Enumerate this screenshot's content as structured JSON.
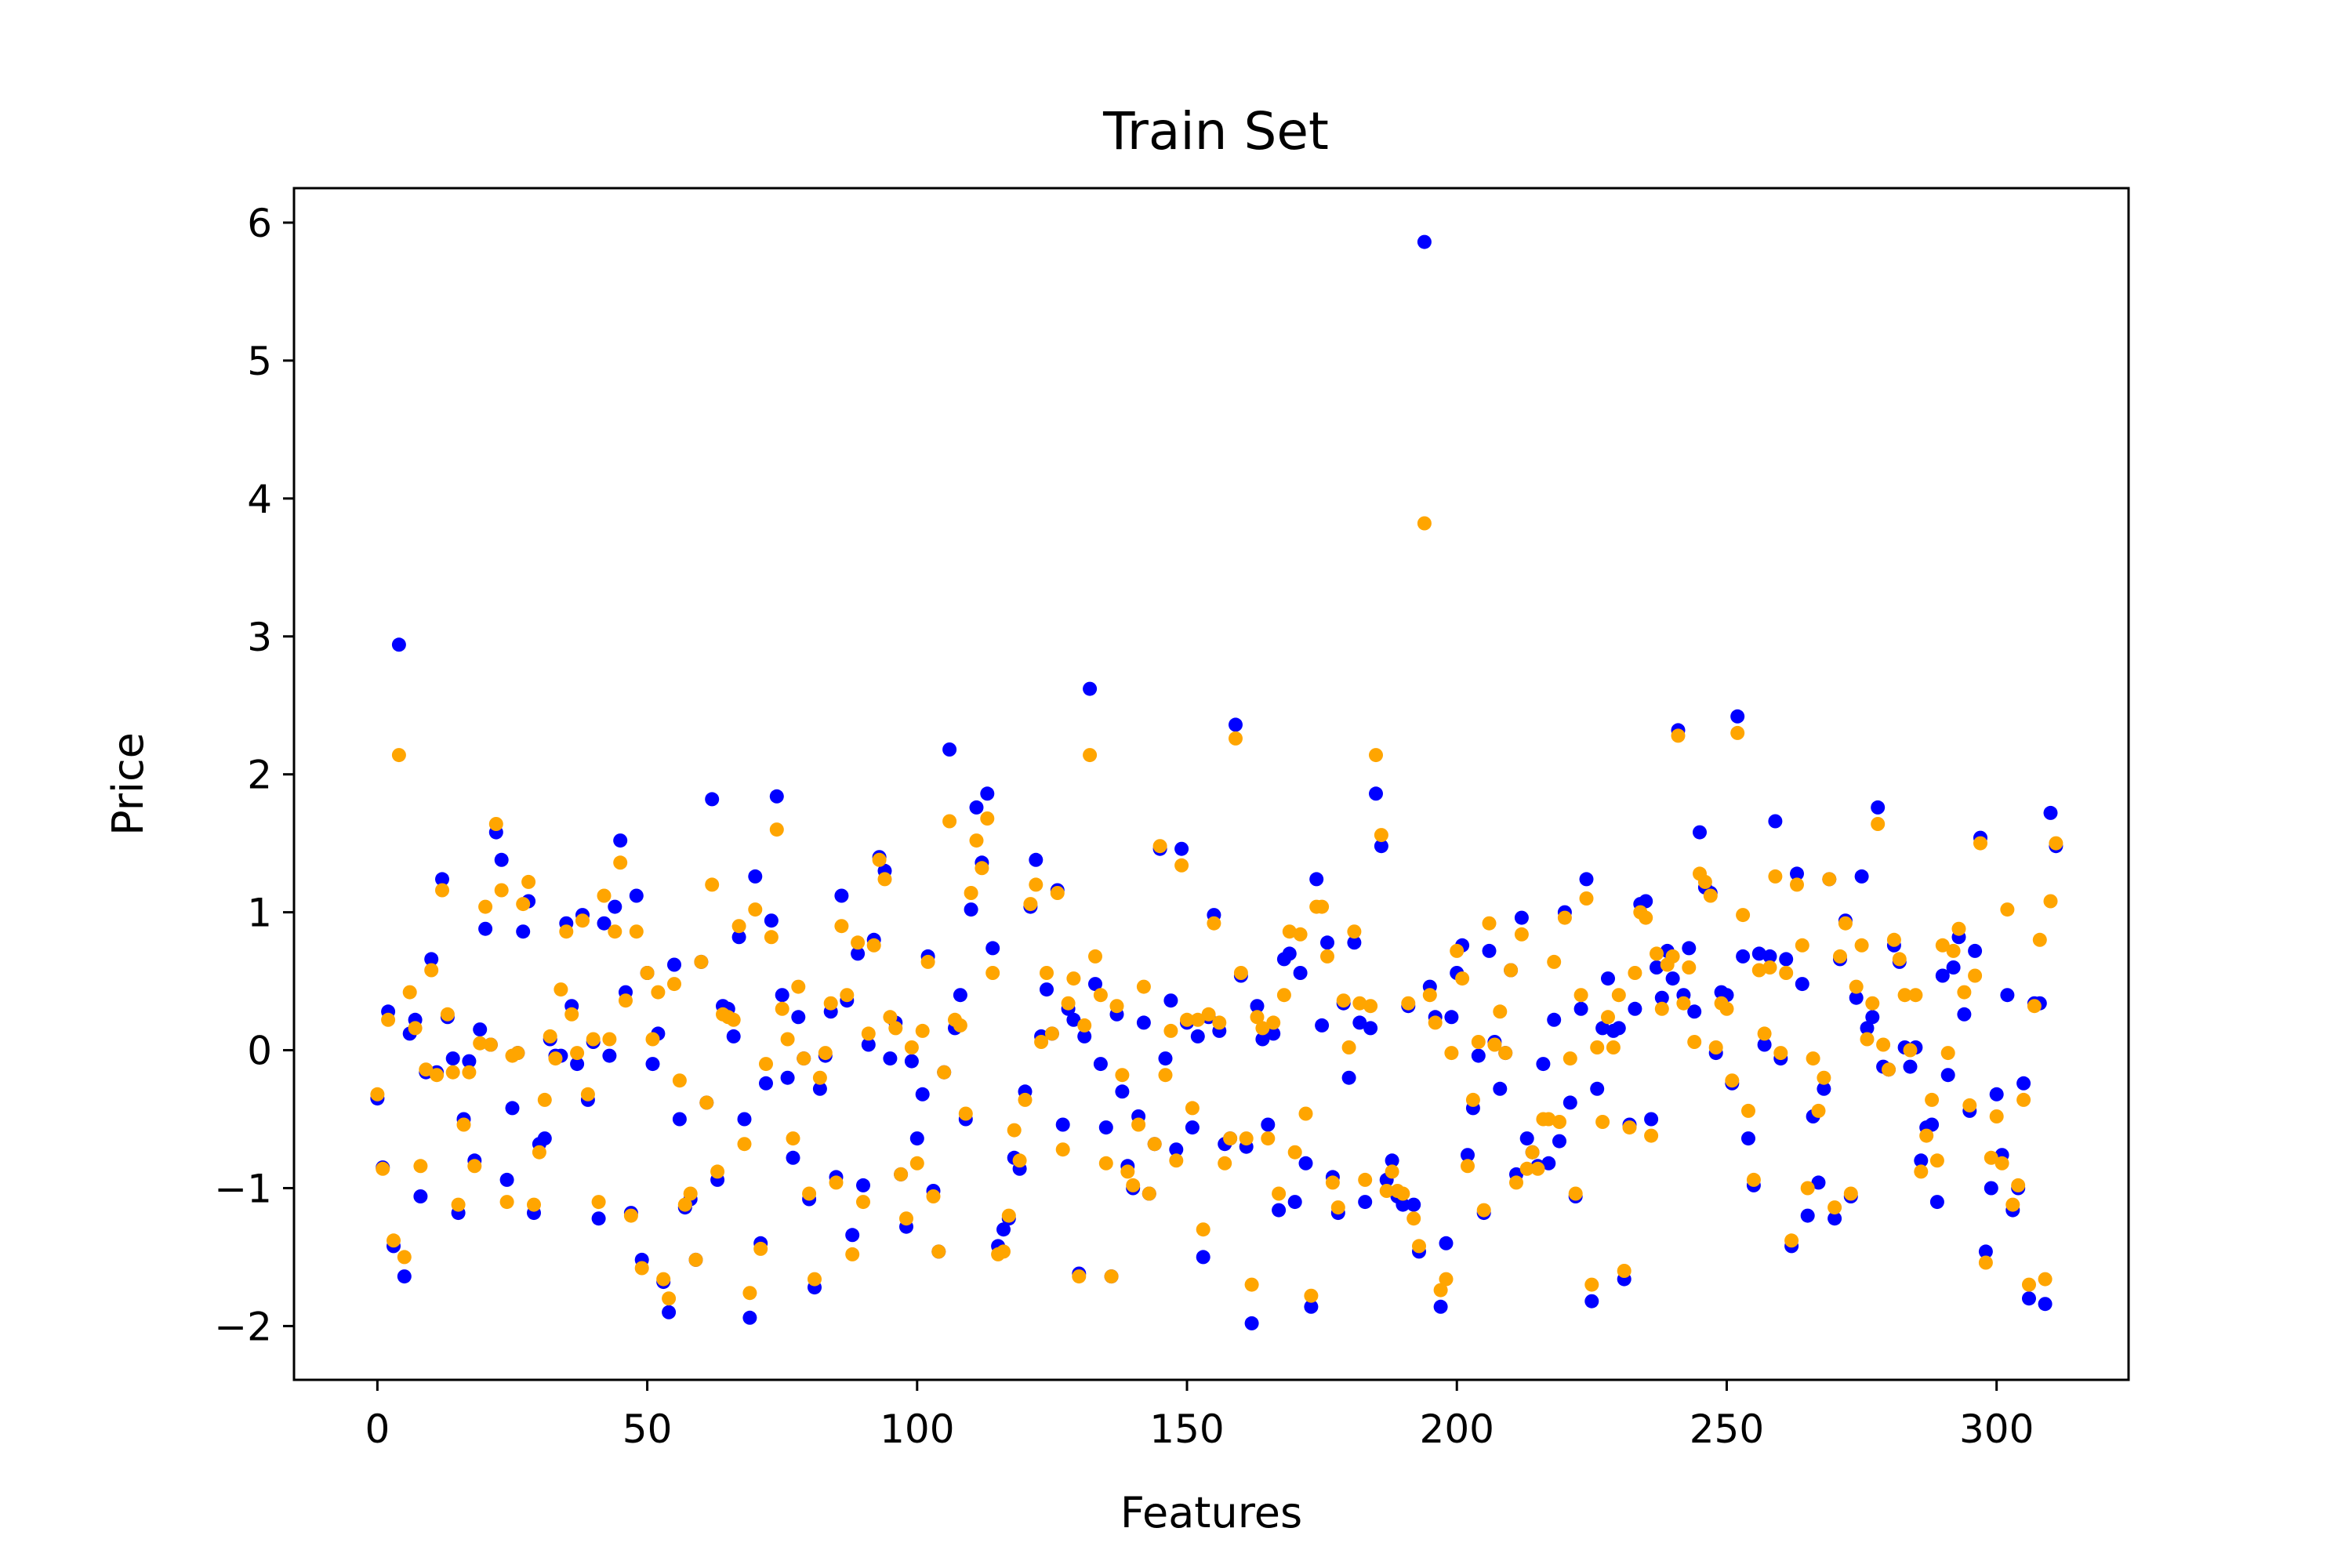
{
  "chart_data": {
    "type": "scatter",
    "title": "Train Set",
    "xlabel": "Features",
    "ylabel": "Price",
    "xlim": [
      -15.45,
      324.45
    ],
    "ylim": [
      -2.39,
      6.25
    ],
    "xticks": [
      0,
      50,
      100,
      150,
      200,
      250,
      300
    ],
    "yticks": [
      -2,
      -1,
      0,
      1,
      2,
      3,
      4,
      5,
      6
    ],
    "xtick_labels": [
      "0",
      "50",
      "100",
      "150",
      "200",
      "250",
      "300"
    ],
    "ytick_labels": [
      "−2",
      "−1",
      "0",
      "1",
      "2",
      "3",
      "4",
      "5",
      "6"
    ],
    "grid": false,
    "legend": false,
    "series": [
      {
        "color": "#0000ff",
        "values": [
          -0.35,
          -0.85,
          0.28,
          -1.42,
          2.94,
          -1.64,
          0.12,
          0.22,
          -1.06,
          -0.16,
          0.66,
          -0.16,
          1.24,
          0.24,
          -0.06,
          -1.18,
          -0.5,
          -0.08,
          -0.8,
          0.15,
          0.88,
          0.04,
          1.58,
          1.38,
          -0.94,
          -0.42,
          -0.02,
          0.86,
          1.08,
          -1.18,
          -0.68,
          -0.64,
          0.08,
          -0.04,
          -0.04,
          0.92,
          0.32,
          -0.1,
          0.98,
          -0.36,
          0.06,
          -1.22,
          0.92,
          -0.04,
          1.04,
          1.52,
          0.42,
          -1.18,
          1.12,
          -1.52,
          0.56,
          -0.1,
          0.12,
          -1.68,
          -1.9,
          0.62,
          -0.5,
          -1.14,
          -1.08,
          -1.52,
          0.64,
          -0.38,
          1.82,
          -0.94,
          0.32,
          0.3,
          0.1,
          0.82,
          -0.5,
          -1.94,
          1.26,
          -1.4,
          -0.24,
          0.94,
          1.84,
          0.4,
          -0.2,
          -0.78,
          0.24,
          -0.06,
          -1.08,
          -1.72,
          -0.28,
          -0.04,
          0.28,
          -0.92,
          1.12,
          0.36,
          -1.34,
          0.7,
          -0.98,
          0.04,
          0.8,
          1.4,
          1.3,
          -0.06,
          0.2,
          -0.9,
          -1.28,
          -0.08,
          -0.64,
          -0.32,
          0.68,
          -1.02,
          -1.46,
          -0.16,
          2.18,
          0.16,
          0.4,
          -0.5,
          1.02,
          1.76,
          1.36,
          1.86,
          0.74,
          -1.42,
          -1.3,
          -1.22,
          -0.78,
          -0.86,
          -0.3,
          1.04,
          1.38,
          0.1,
          0.44,
          0.12,
          1.16,
          -0.54,
          0.3,
          0.22,
          -1.62,
          0.1,
          2.62,
          0.48,
          -0.1,
          -0.56,
          -1.64,
          0.26,
          -0.3,
          -0.84,
          -1.0,
          -0.48,
          0.2,
          -1.04,
          -0.68,
          1.46,
          -0.06,
          0.36,
          -0.72,
          1.46,
          0.2,
          -0.56,
          0.1,
          -1.5,
          0.24,
          0.98,
          0.14,
          -0.68,
          -0.64,
          2.36,
          0.54,
          -0.7,
          -1.98,
          0.32,
          0.08,
          -0.54,
          0.12,
          -1.16,
          0.66,
          0.7,
          -1.1,
          0.56,
          -0.82,
          -1.86,
          1.24,
          0.18,
          0.78,
          -0.92,
          -1.18,
          0.34,
          -0.2,
          0.78,
          0.2,
          -1.1,
          0.16,
          1.86,
          1.48,
          -0.94,
          -0.8,
          -1.06,
          -1.12,
          0.32,
          -1.12,
          -1.46,
          5.86,
          0.46,
          0.24,
          -1.86,
          -1.4,
          0.24,
          0.56,
          0.76,
          -0.76,
          -0.42,
          -0.04,
          -1.18,
          0.72,
          0.06,
          -0.28,
          -0.02,
          0.58,
          -0.9,
          0.96,
          -0.64,
          -0.74,
          -0.84,
          -0.1,
          -0.82,
          0.22,
          -0.66,
          1.0,
          -0.38,
          -1.06,
          0.3,
          1.24,
          -1.82,
          -0.28,
          0.16,
          0.52,
          0.14,
          0.16,
          -1.66,
          -0.54,
          0.3,
          1.06,
          1.08,
          -0.5,
          0.6,
          0.38,
          0.72,
          0.52,
          2.32,
          0.4,
          0.74,
          0.28,
          1.58,
          1.18,
          1.14,
          -0.02,
          0.42,
          0.4,
          -0.24,
          2.42,
          0.68,
          -0.64,
          -0.98,
          0.7,
          0.04,
          0.68,
          1.66,
          -0.06,
          0.66,
          -1.42,
          1.28,
          0.48,
          -1.2,
          -0.48,
          -0.96,
          -0.28,
          1.24,
          -1.22,
          0.66,
          0.94,
          -1.06,
          0.38,
          1.26,
          0.16,
          0.24,
          1.76,
          -0.12,
          -0.14,
          0.76,
          0.64,
          0.02,
          -0.12,
          0.02,
          -0.8,
          -0.56,
          -0.54,
          -1.1,
          0.54,
          -0.18,
          0.6,
          0.82,
          0.26,
          -0.44,
          0.72,
          1.54,
          -1.46,
          -1.0,
          -0.32,
          -0.76,
          0.4,
          -1.16,
          -1.0,
          -0.24,
          -1.8,
          0.34,
          0.34,
          -1.84,
          1.72,
          1.48
        ]
      },
      {
        "color": "#ffa500",
        "values": [
          -0.32,
          -0.86,
          0.22,
          -1.38,
          2.14,
          -1.5,
          0.42,
          0.16,
          -0.84,
          -0.14,
          0.58,
          -0.18,
          1.16,
          0.26,
          -0.16,
          -1.12,
          -0.54,
          -0.16,
          -0.84,
          0.05,
          1.04,
          0.04,
          1.64,
          1.16,
          -1.1,
          -0.04,
          -0.02,
          1.06,
          1.22,
          -1.12,
          -0.74,
          -0.36,
          0.1,
          -0.06,
          0.44,
          0.86,
          0.26,
          -0.02,
          0.94,
          -0.32,
          0.08,
          -1.1,
          1.12,
          0.08,
          0.86,
          1.36,
          0.36,
          -1.2,
          0.86,
          -1.58,
          0.56,
          0.08,
          0.42,
          -1.66,
          -1.8,
          0.48,
          -0.22,
          -1.12,
          -1.04,
          -1.52,
          0.64,
          -0.38,
          1.2,
          -0.88,
          0.26,
          0.24,
          0.22,
          0.9,
          -0.68,
          -1.76,
          1.02,
          -1.44,
          -0.1,
          0.82,
          1.6,
          0.3,
          0.08,
          -0.64,
          0.46,
          -0.06,
          -1.04,
          -1.66,
          -0.2,
          -0.02,
          0.34,
          -0.96,
          0.9,
          0.4,
          -1.48,
          0.78,
          -1.1,
          0.12,
          0.76,
          1.38,
          1.24,
          0.24,
          0.16,
          -0.9,
          -1.22,
          0.02,
          -0.82,
          0.14,
          0.64,
          -1.06,
          -1.46,
          -0.16,
          1.66,
          0.22,
          0.18,
          -0.46,
          1.14,
          1.52,
          1.32,
          1.68,
          0.56,
          -1.48,
          -1.46,
          -1.2,
          -0.58,
          -0.8,
          -0.36,
          1.06,
          1.2,
          0.06,
          0.56,
          0.12,
          1.14,
          -0.72,
          0.34,
          0.52,
          -1.64,
          0.18,
          2.14,
          0.68,
          0.4,
          -0.82,
          -1.64,
          0.32,
          -0.18,
          -0.88,
          -0.98,
          -0.54,
          0.46,
          -1.04,
          -0.68,
          1.48,
          -0.18,
          0.14,
          -0.8,
          1.34,
          0.22,
          -0.42,
          0.22,
          -1.3,
          0.26,
          0.92,
          0.2,
          -0.82,
          -0.64,
          2.26,
          0.56,
          -0.64,
          -1.7,
          0.24,
          0.16,
          -0.64,
          0.2,
          -1.04,
          0.4,
          0.86,
          -0.74,
          0.84,
          -0.46,
          -1.78,
          1.04,
          1.04,
          0.68,
          -0.96,
          -1.14,
          0.36,
          0.02,
          0.86,
          0.34,
          -0.94,
          0.32,
          2.14,
          1.56,
          -1.02,
          -0.88,
          -1.02,
          -1.04,
          0.34,
          -1.22,
          -1.42,
          3.82,
          0.4,
          0.2,
          -1.74,
          -1.66,
          -0.02,
          0.72,
          0.52,
          -0.84,
          -0.36,
          0.06,
          -1.16,
          0.92,
          0.04,
          0.28,
          -0.02,
          0.58,
          -0.96,
          0.84,
          -0.86,
          -0.74,
          -0.86,
          -0.5,
          -0.5,
          0.64,
          -0.52,
          0.96,
          -0.06,
          -1.04,
          0.4,
          1.1,
          -1.7,
          0.02,
          -0.52,
          0.24,
          0.02,
          0.4,
          -1.6,
          -0.56,
          0.56,
          1.0,
          0.96,
          -0.62,
          0.7,
          0.3,
          0.62,
          0.68,
          2.28,
          0.34,
          0.6,
          0.06,
          1.28,
          1.22,
          1.12,
          0.02,
          0.34,
          0.3,
          -0.22,
          2.3,
          0.98,
          -0.44,
          -0.94,
          0.58,
          0.12,
          0.6,
          1.26,
          -0.02,
          0.56,
          -1.38,
          1.2,
          0.76,
          -1.0,
          -0.06,
          -0.44,
          -0.2,
          1.24,
          -1.14,
          0.68,
          0.92,
          -1.04,
          0.46,
          0.76,
          0.08,
          0.34,
          1.64,
          0.04,
          -0.14,
          0.8,
          0.66,
          0.4,
          0.0,
          0.4,
          -0.88,
          -0.62,
          -0.36,
          -0.8,
          0.76,
          -0.02,
          0.72,
          0.88,
          0.42,
          -0.4,
          0.54,
          1.5,
          -1.54,
          -0.78,
          -0.48,
          -0.82,
          1.02,
          -1.12,
          -0.98,
          -0.36,
          -1.7,
          0.32,
          0.8,
          -1.66,
          1.08,
          1.5
        ]
      }
    ]
  }
}
